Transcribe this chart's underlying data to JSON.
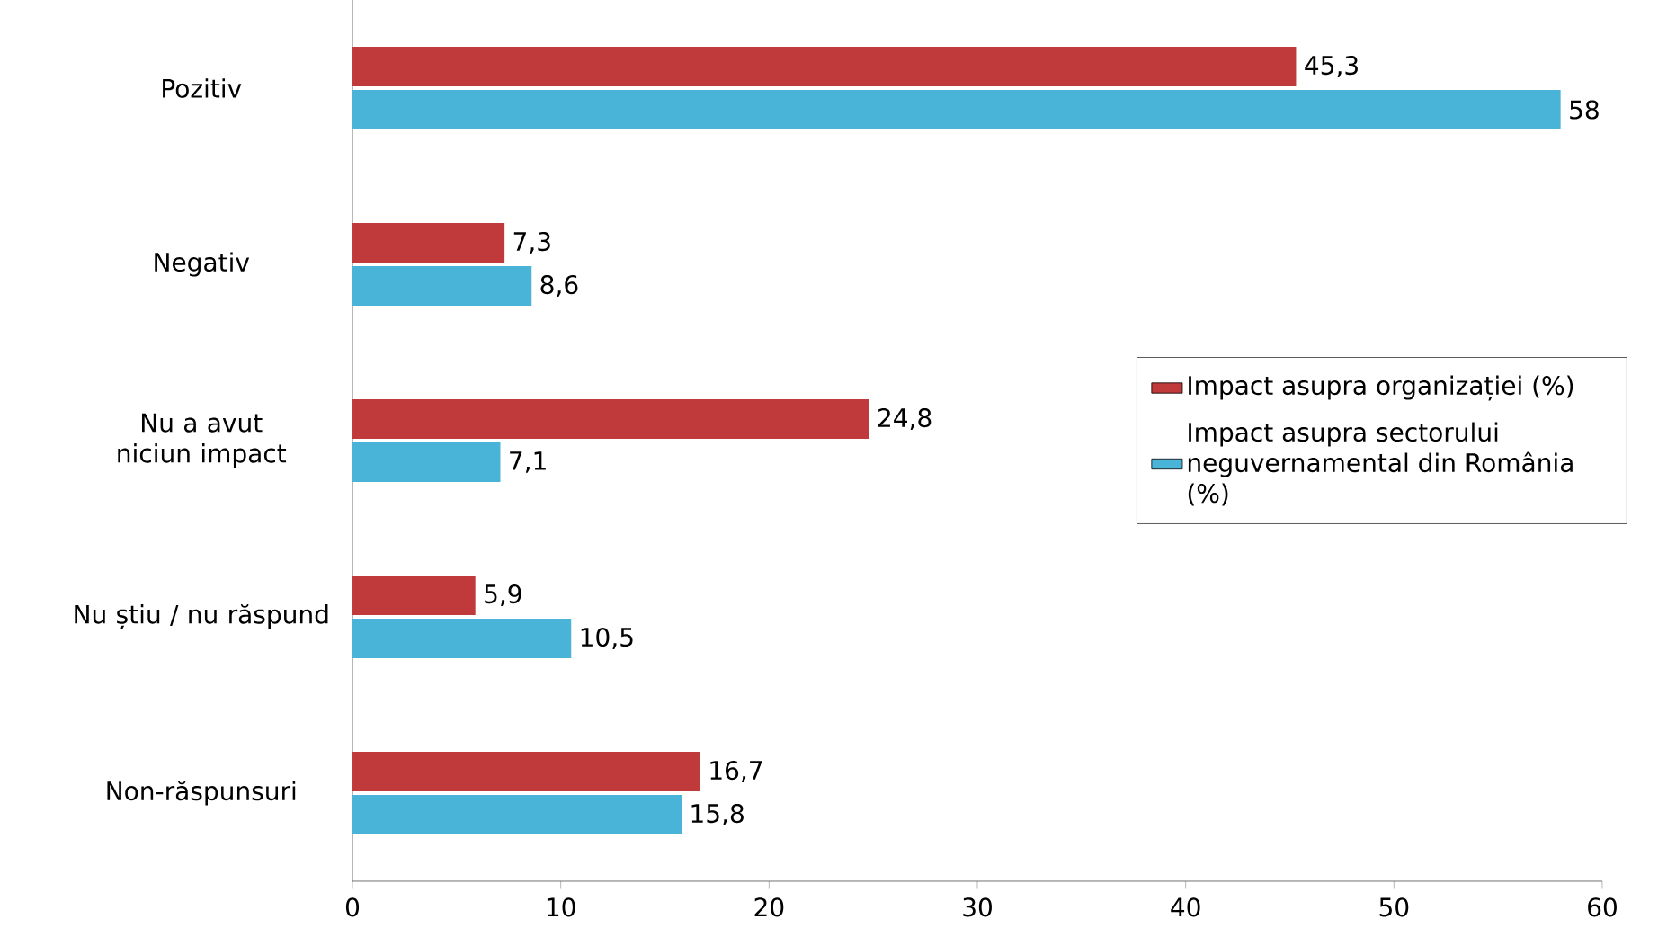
{
  "chart_data": {
    "type": "bar",
    "orientation": "horizontal",
    "categories": [
      "Pozitiv",
      "Negativ",
      "Nu a avut niciun impact",
      "Nu știu / nu răspund",
      "Non-răspunsuri"
    ],
    "series": [
      {
        "name": "Impact asupra organizației (%)",
        "color": "#c0393b",
        "values": [
          45.3,
          7.3,
          24.8,
          5.9,
          16.7
        ],
        "value_labels": [
          "45,3",
          "7,3",
          "24,8",
          "5,9",
          "16,7"
        ]
      },
      {
        "name": "Impact asupra sectorului neguvernamental din România (%)",
        "color": "#4ab3d8",
        "values": [
          58,
          8.6,
          7.1,
          10.5,
          15.8
        ],
        "value_labels": [
          "58",
          "8,6",
          "7,1",
          "10,5",
          "15,8"
        ]
      }
    ],
    "xlim": [
      0,
      60
    ],
    "xticks": [
      0,
      10,
      20,
      30,
      40,
      50,
      60
    ],
    "legend": "right",
    "grid": false
  }
}
